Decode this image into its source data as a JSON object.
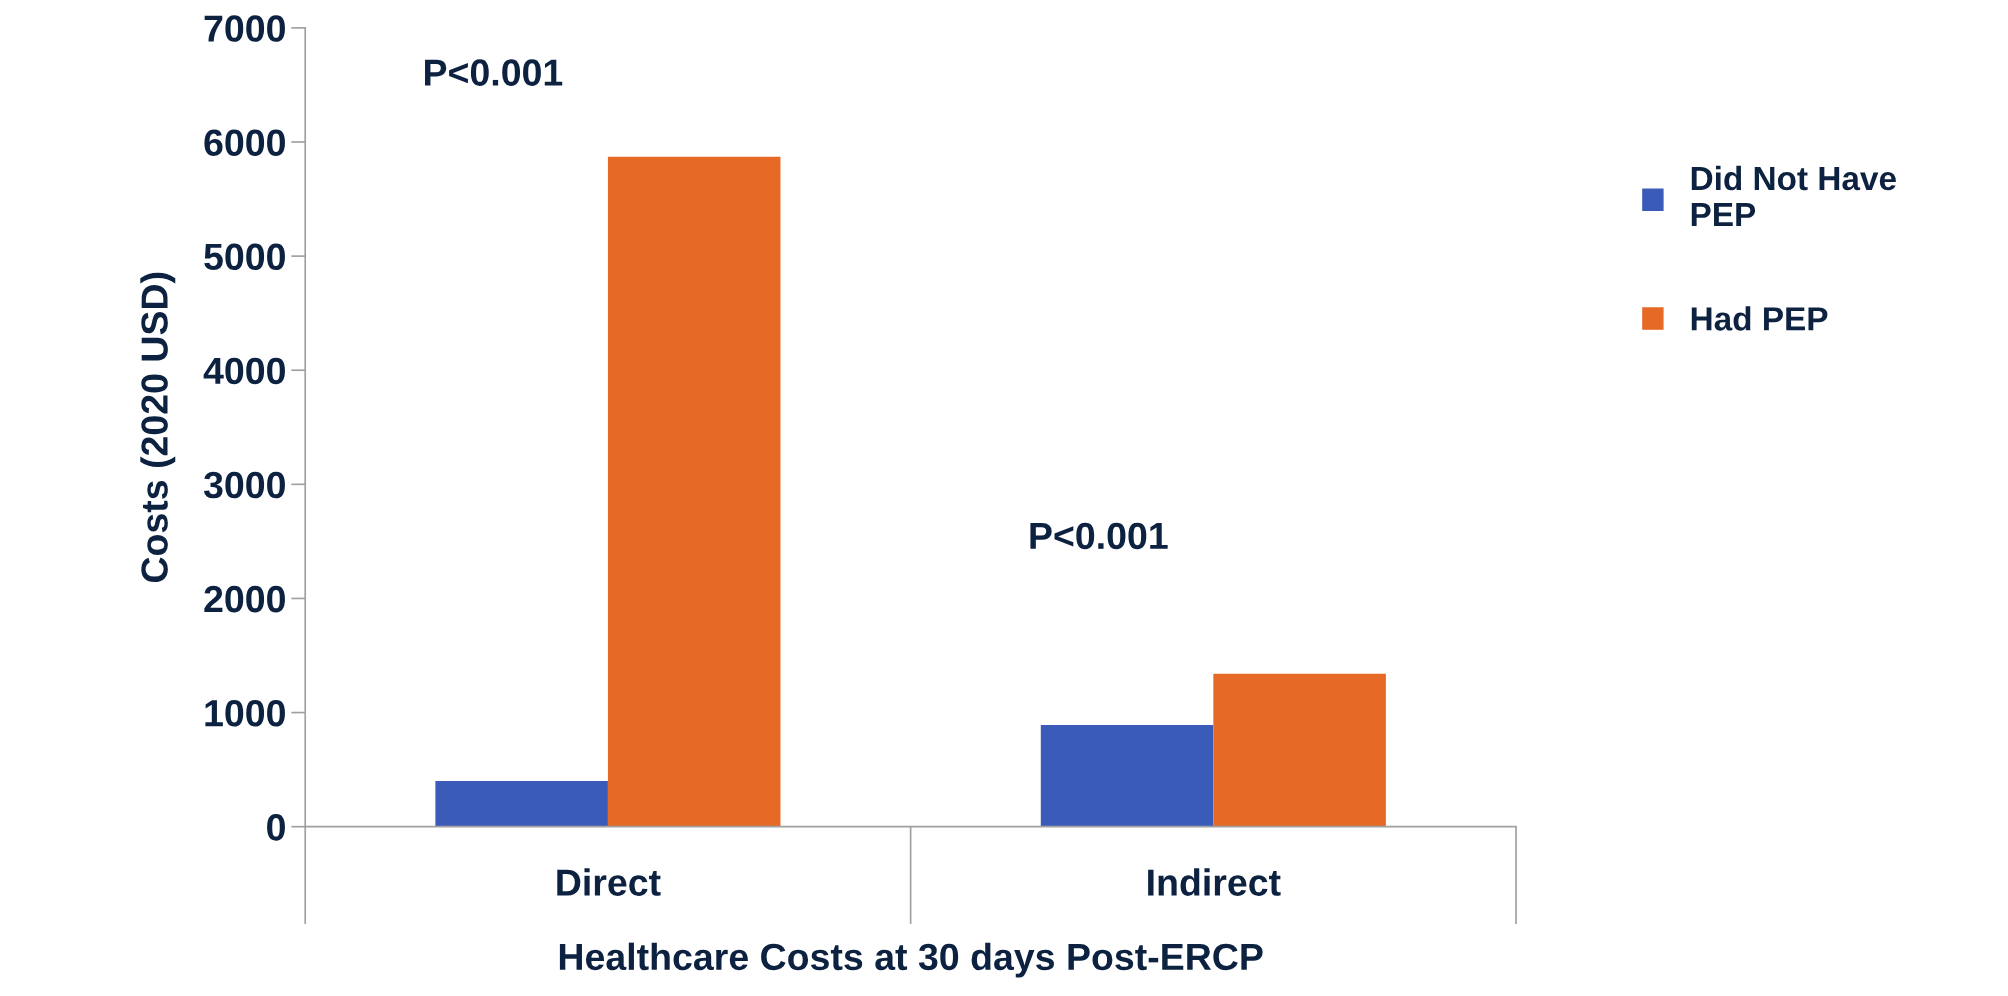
{
  "chart_data": {
    "type": "bar",
    "xlabel": "Healthcare Costs at 30 days Post-ERCP",
    "ylabel": "Costs (2020 USD)",
    "categories": [
      "Direct",
      "Indirect"
    ],
    "series": [
      {
        "name": "Did Not Have\nPEP",
        "color": "#3a5bb8",
        "values": [
          400,
          890
        ]
      },
      {
        "name": "Had PEP",
        "color": "#e66926",
        "values": [
          5870,
          1340
        ]
      }
    ],
    "ylim": [
      0,
      7000
    ],
    "yticks": [
      0,
      1000,
      2000,
      3000,
      4000,
      5000,
      6000,
      7000
    ],
    "grid": false,
    "legend": "right",
    "annotations": [
      "P<0.001",
      "P<0.001"
    ]
  }
}
